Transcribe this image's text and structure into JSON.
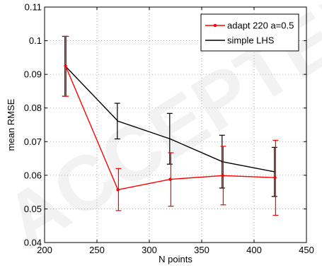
{
  "watermark": "ACCEPTED",
  "chart_data": {
    "type": "line",
    "title": "",
    "xlabel": "N points",
    "ylabel": "mean RMSE",
    "xlim": [
      200,
      450
    ],
    "ylim": [
      0.04,
      0.11
    ],
    "xticks": [
      200,
      250,
      300,
      350,
      400,
      450
    ],
    "yticks": [
      0.04,
      0.05,
      0.06,
      0.07,
      0.08,
      0.09,
      0.1,
      0.11
    ],
    "xtick_labels": [
      "200",
      "250",
      "300",
      "350",
      "400",
      "450"
    ],
    "ytick_labels": [
      "0.04",
      "0.05",
      "0.06",
      "0.07",
      "0.08",
      "0.09",
      "0.1",
      "0.11"
    ],
    "grid": true,
    "legend_position": "top-right",
    "series": [
      {
        "name": "adapt 220 a=0.5",
        "color": "#ff0000",
        "marker": "dot",
        "x": [
          220,
          270,
          320,
          370,
          420
        ],
        "y": [
          0.0925,
          0.0557,
          0.0588,
          0.0599,
          0.0593
        ],
        "err_low": [
          0.0835,
          0.0495,
          0.0508,
          0.0512,
          0.0481
        ],
        "err_high": [
          0.1013,
          0.062,
          0.0667,
          0.0686,
          0.0704
        ]
      },
      {
        "name": "simple LHS",
        "color": "#000000",
        "marker": "none",
        "x": [
          220,
          270,
          320,
          370,
          420
        ],
        "y": [
          0.0924,
          0.0761,
          0.0708,
          0.064,
          0.061
        ],
        "err_low": [
          0.0835,
          0.0708,
          0.0633,
          0.0562,
          0.0537
        ],
        "err_high": [
          0.1013,
          0.0814,
          0.0784,
          0.0719,
          0.0683
        ]
      }
    ]
  }
}
